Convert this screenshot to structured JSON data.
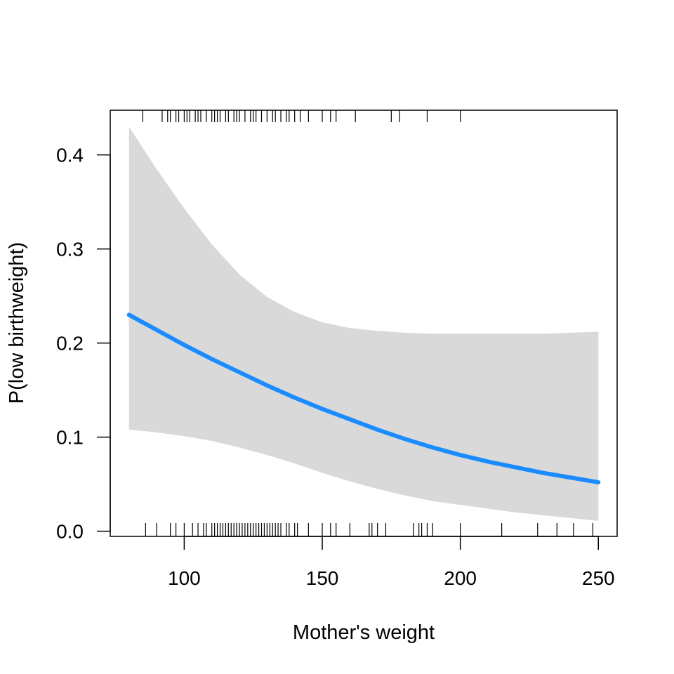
{
  "chart_data": {
    "type": "line",
    "title": "",
    "xlabel": "Mother's weight",
    "ylabel": "P(low birthweight)",
    "xlim": [
      73.2,
      256.8
    ],
    "ylim": [
      -0.0055,
      0.4475
    ],
    "xticks": [
      100,
      150,
      200,
      250
    ],
    "yticks": [
      0.0,
      0.1,
      0.2,
      0.3,
      0.4
    ],
    "xtick_labels": [
      "100",
      "150",
      "200",
      "250"
    ],
    "ytick_labels": [
      "0.0",
      "0.1",
      "0.2",
      "0.3",
      "0.4"
    ],
    "grid": false,
    "legend": null,
    "colors": {
      "line": "#1a8cff",
      "band": "#d9d9d9",
      "axis": "#000000"
    },
    "series": [
      {
        "x": [
          80,
          90,
          100,
          110,
          120,
          130,
          140,
          150,
          160,
          170,
          180,
          190,
          200,
          210,
          220,
          230,
          240,
          250
        ],
        "y": [
          0.23,
          0.214,
          0.198,
          0.183,
          0.169,
          0.155,
          0.142,
          0.13,
          0.119,
          0.108,
          0.098,
          0.089,
          0.081,
          0.074,
          0.068,
          0.062,
          0.057,
          0.052
        ],
        "lower": [
          0.108,
          0.105,
          0.101,
          0.096,
          0.089,
          0.081,
          0.072,
          0.062,
          0.053,
          0.045,
          0.038,
          0.032,
          0.028,
          0.024,
          0.02,
          0.017,
          0.014,
          0.011
        ],
        "upper": [
          0.43,
          0.385,
          0.343,
          0.305,
          0.273,
          0.249,
          0.233,
          0.222,
          0.216,
          0.213,
          0.211,
          0.21,
          0.21,
          0.21,
          0.21,
          0.21,
          0.211,
          0.212
        ]
      }
    ],
    "rug_top": [
      85,
      92,
      94,
      95,
      97,
      98,
      100,
      101,
      102,
      104,
      105,
      106,
      108,
      110,
      111,
      112,
      113,
      115,
      116,
      118,
      119,
      120,
      122,
      124,
      125,
      126,
      128,
      130,
      132,
      133,
      135,
      137,
      138,
      140,
      142,
      145,
      150,
      153,
      155,
      162,
      175,
      178,
      188,
      200
    ],
    "rug_bottom": [
      86,
      90,
      95,
      97,
      100,
      103,
      105,
      107,
      108,
      110,
      111,
      112,
      113,
      114,
      115,
      116,
      117,
      118,
      119,
      120,
      121,
      122,
      123,
      124,
      125,
      126,
      127,
      128,
      129,
      130,
      131,
      132,
      133,
      134,
      135,
      137,
      138,
      140,
      141,
      145,
      150,
      153,
      155,
      160,
      167,
      168,
      170,
      173,
      183,
      185,
      186,
      188,
      190,
      200,
      215,
      228,
      235,
      241,
      248
    ]
  }
}
